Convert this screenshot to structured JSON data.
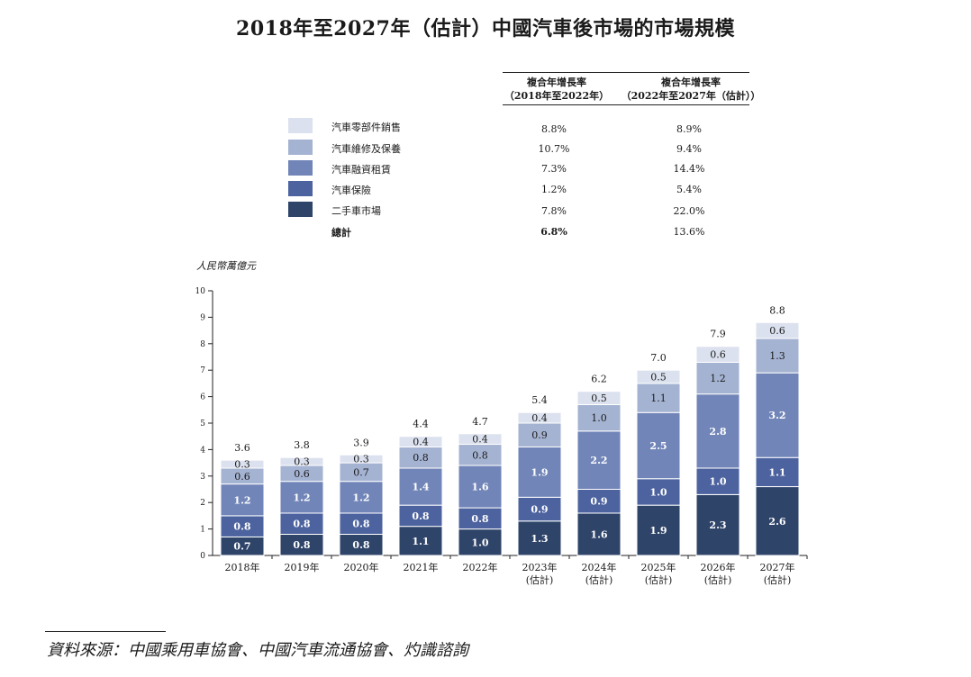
{
  "title": "2018年至2027年（估計）中國汽車後市場的市場規模",
  "cagr_table": {
    "headers": [
      {
        "line1": "複合年增長率",
        "line2": "（2018年至2022年）"
      },
      {
        "line1": "複合年增長率",
        "line2": "（2022年至2027年（估計））"
      }
    ],
    "rows": [
      {
        "label": "汽車零部件銷售",
        "color": "#dbe1ee",
        "cagr1": "8.8%",
        "cagr2": "8.9%"
      },
      {
        "label": "汽車維修及保養",
        "color": "#a5b3d2",
        "cagr1": "10.7%",
        "cagr2": "9.4%"
      },
      {
        "label": "汽車融資租賃",
        "color": "#7185b8",
        "cagr1": "7.3%",
        "cagr2": "14.4%"
      },
      {
        "label": "汽車保險",
        "color": "#4d639f",
        "cagr1": "1.2%",
        "cagr2": "5.4%"
      },
      {
        "label": "二手車市場",
        "color": "#2f4469",
        "cagr1": "7.8%",
        "cagr2": "22.0%"
      }
    ],
    "total": {
      "label": "總計",
      "cagr1": "6.8%",
      "cagr2": "13.6%"
    }
  },
  "chart_data": {
    "type": "bar",
    "stacked": true,
    "ylabel": "人民幣萬億元",
    "ylim": [
      0,
      10
    ],
    "yticks": [
      "0",
      "1",
      "2",
      "3",
      "4",
      "5",
      "6",
      "7",
      "8",
      "9",
      "10"
    ],
    "categories": [
      {
        "year": "2018年",
        "note": ""
      },
      {
        "year": "2019年",
        "note": ""
      },
      {
        "year": "2020年",
        "note": ""
      },
      {
        "year": "2021年",
        "note": ""
      },
      {
        "year": "2022年",
        "note": ""
      },
      {
        "year": "2023年",
        "note": "(估計)"
      },
      {
        "year": "2024年",
        "note": "(估計)"
      },
      {
        "year": "2025年",
        "note": "(估計)"
      },
      {
        "year": "2026年",
        "note": "(估計)"
      },
      {
        "year": "2027年",
        "note": "(估計)"
      }
    ],
    "series": [
      {
        "name": "二手車市場",
        "color": "#2f4469",
        "label_color": "#ffffff",
        "values": [
          0.7,
          0.8,
          0.8,
          1.1,
          1.0,
          1.3,
          1.6,
          1.9,
          2.3,
          2.6
        ]
      },
      {
        "name": "汽車保險",
        "color": "#4d639f",
        "label_color": "#ffffff",
        "values": [
          0.8,
          0.8,
          0.8,
          0.8,
          0.8,
          0.9,
          0.9,
          1.0,
          1.0,
          1.1
        ]
      },
      {
        "name": "汽車融資租賃",
        "color": "#7185b8",
        "label_color": "#ffffff",
        "values": [
          1.2,
          1.2,
          1.2,
          1.4,
          1.6,
          1.9,
          2.2,
          2.5,
          2.8,
          3.2
        ]
      },
      {
        "name": "汽車維修及保養",
        "color": "#a5b3d2",
        "label_color": "#1a1a1a",
        "values": [
          0.6,
          0.6,
          0.7,
          0.8,
          0.8,
          0.9,
          1.0,
          1.1,
          1.2,
          1.3
        ]
      },
      {
        "name": "汽車零部件銷售",
        "color": "#dbe1ee",
        "label_color": "#1a1a1a",
        "values": [
          0.3,
          0.3,
          0.3,
          0.4,
          0.4,
          0.4,
          0.5,
          0.5,
          0.6,
          0.6
        ]
      }
    ],
    "totals": [
      "3.6",
      "3.8",
      "3.9",
      "4.4",
      "4.7",
      "5.4",
      "6.2",
      "7.0",
      "7.9",
      "8.8"
    ],
    "segment_labels": [
      [
        "0.7",
        "0.8",
        "0.8",
        "1.1",
        "1.0",
        "1.3",
        "1.6",
        "1.9",
        "2.3",
        "2.6"
      ],
      [
        "0.8",
        "0.8",
        "0.8",
        "0.8",
        "0.8",
        "0.9",
        "0.9",
        "1.0",
        "1.0",
        "1.1"
      ],
      [
        "1.2",
        "1.2",
        "1.2",
        "1.4",
        "1.6",
        "1.9",
        "2.2",
        "2.5",
        "2.8",
        "3.2"
      ],
      [
        "0.6",
        "0.6",
        "0.7",
        "0.8",
        "0.8",
        "0.9",
        "1.0",
        "1.1",
        "1.2",
        "1.3"
      ],
      [
        "0.3",
        "0.3",
        "0.3",
        "0.4",
        "0.4",
        "0.4",
        "0.5",
        "0.5",
        "0.6",
        "0.6"
      ]
    ]
  },
  "source": "資料來源：中國乘用車協會、中國汽車流通協會、灼識諮詢"
}
